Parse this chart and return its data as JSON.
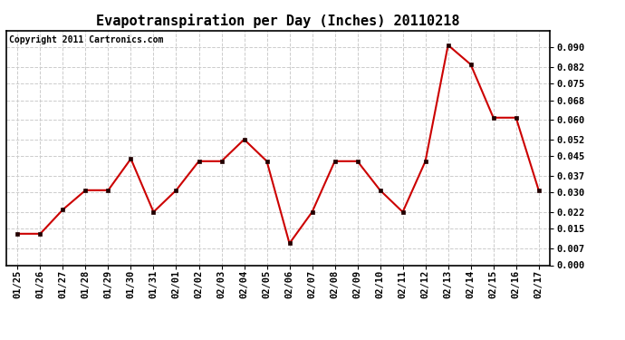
{
  "title": "Evapotranspiration per Day (Inches) 20110218",
  "copyright_text": "Copyright 2011 Cartronics.com",
  "x_labels": [
    "01/25",
    "01/26",
    "01/27",
    "01/28",
    "01/29",
    "01/30",
    "01/31",
    "02/01",
    "02/02",
    "02/03",
    "02/04",
    "02/05",
    "02/06",
    "02/07",
    "02/08",
    "02/09",
    "02/10",
    "02/11",
    "02/12",
    "02/13",
    "02/14",
    "02/15",
    "02/16",
    "02/17"
  ],
  "y_values": [
    0.013,
    0.013,
    0.023,
    0.031,
    0.031,
    0.044,
    0.022,
    0.031,
    0.043,
    0.043,
    0.052,
    0.043,
    0.009,
    0.022,
    0.043,
    0.043,
    0.031,
    0.022,
    0.043,
    0.091,
    0.083,
    0.061,
    0.061,
    0.031
  ],
  "line_color": "#cc0000",
  "marker": "s",
  "marker_size": 3.5,
  "marker_color": "#220000",
  "background_color": "#ffffff",
  "plot_bg_color": "#ffffff",
  "grid_color": "#cccccc",
  "ylim": [
    0.0,
    0.097
  ],
  "ytick_values": [
    0.0,
    0.007,
    0.015,
    0.022,
    0.03,
    0.037,
    0.045,
    0.052,
    0.06,
    0.068,
    0.075,
    0.082,
    0.09
  ],
  "title_fontsize": 11,
  "copyright_fontsize": 7,
  "tick_fontsize": 7.5
}
